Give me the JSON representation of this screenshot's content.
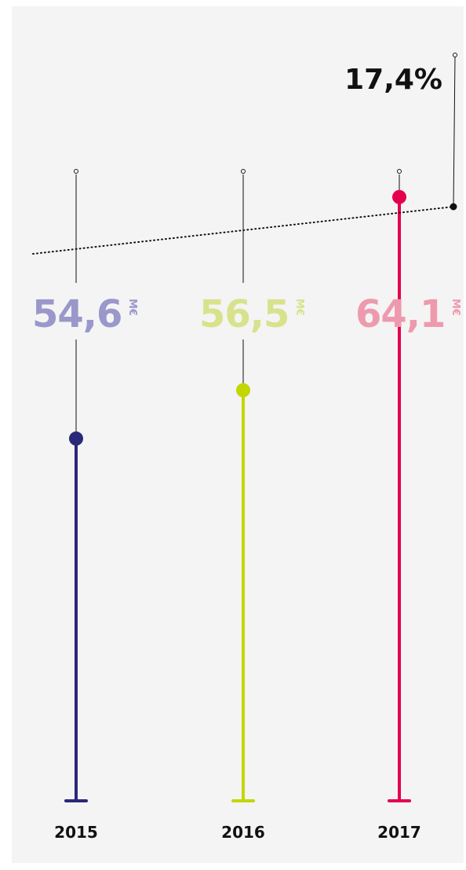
{
  "chart_data": {
    "type": "lollipop",
    "title": "",
    "categories": [
      "2015",
      "2016",
      "2017"
    ],
    "values": [
      54.6,
      56.5,
      64.1
    ],
    "value_labels": [
      "54,6",
      "56,5",
      "64,1"
    ],
    "unit": "M€",
    "colors": [
      "#2a2979",
      "#c3d600",
      "#e4004f"
    ],
    "value_label_colors": [
      "#9a97cb",
      "#d8e28c",
      "#ee9aae"
    ],
    "growth": {
      "value": 17.4,
      "label": "17,4%"
    },
    "trend_line": "dotted",
    "ylim": [
      0,
      80
    ]
  }
}
